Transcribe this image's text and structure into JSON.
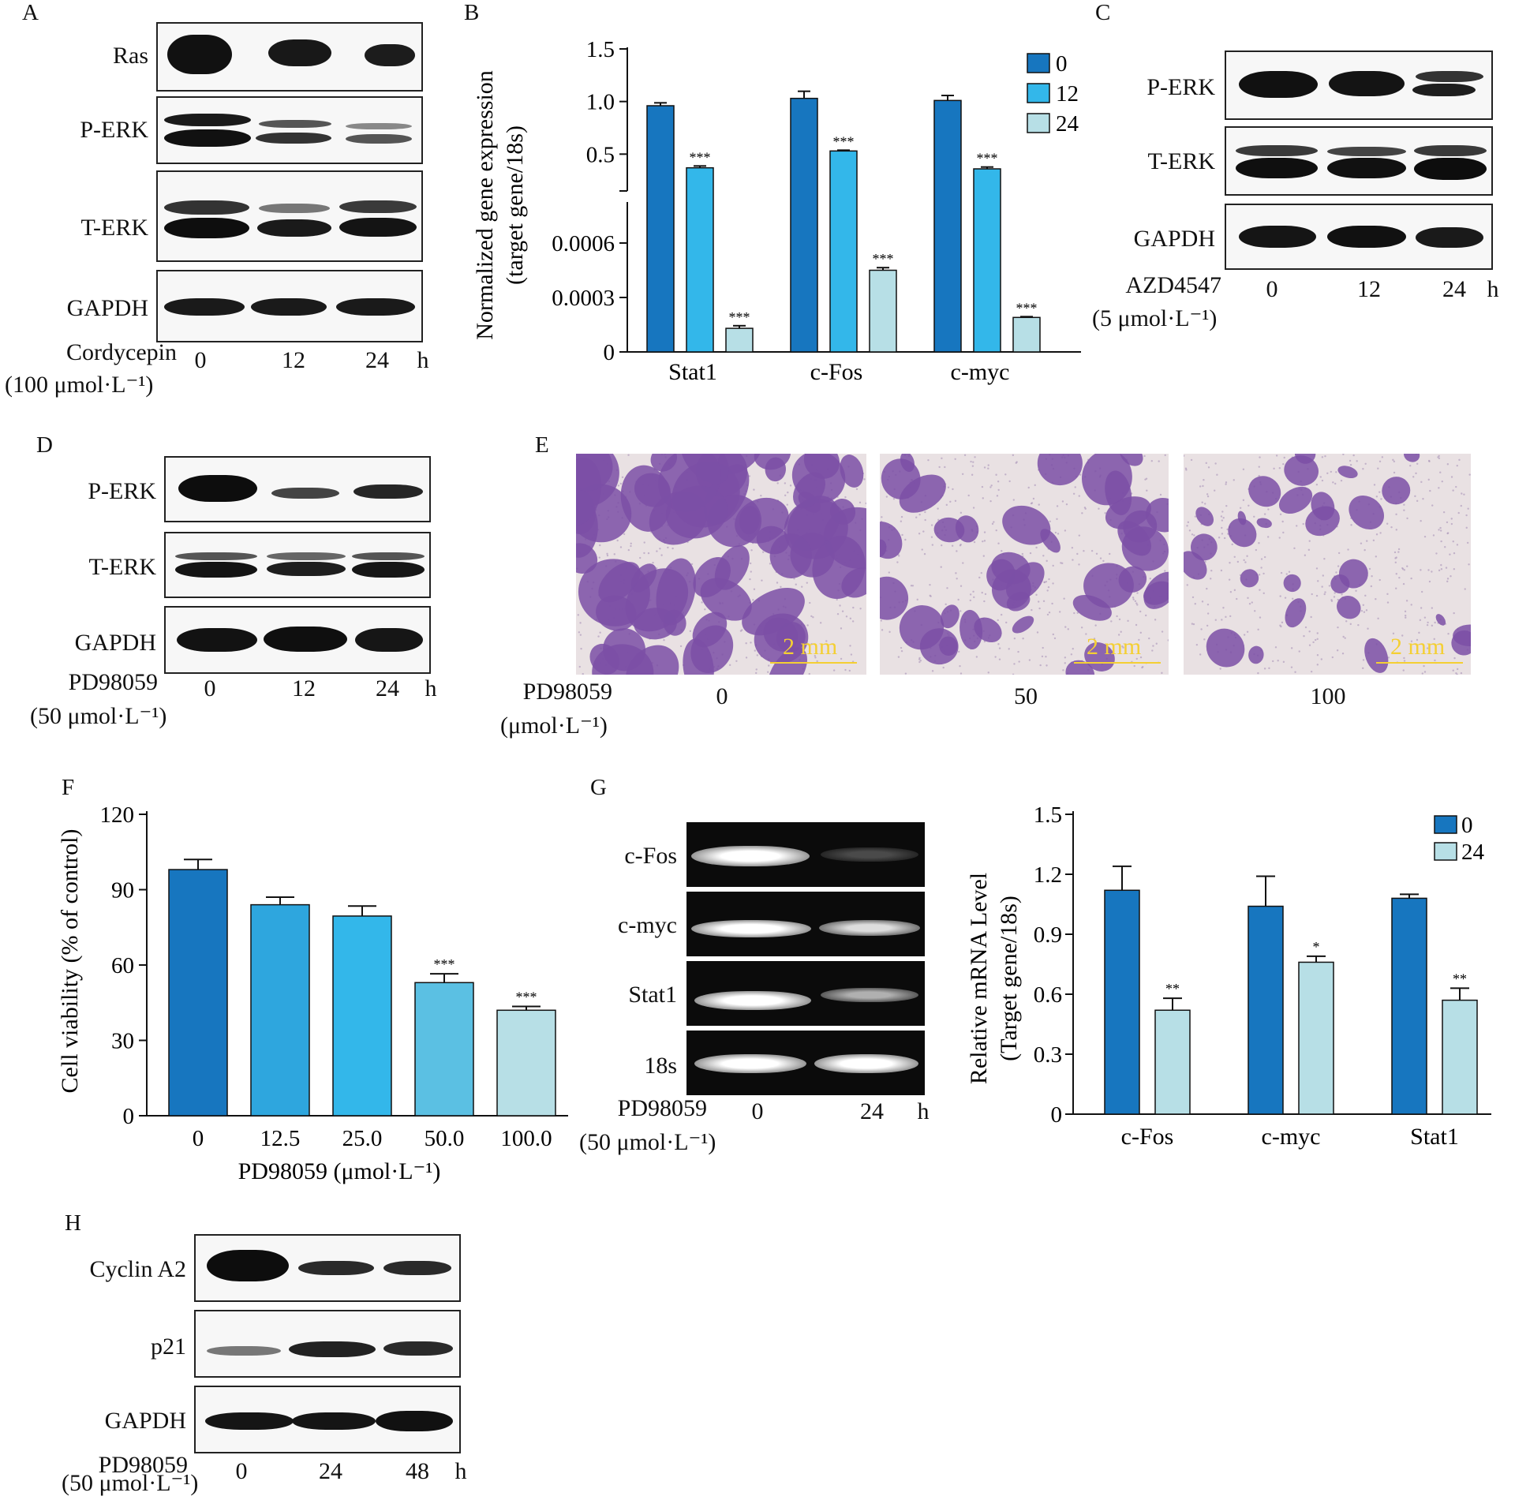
{
  "panel_letters": {
    "A": "A",
    "B": "B",
    "C": "C",
    "D": "D",
    "E": "E",
    "F": "F",
    "G": "G",
    "H": "H"
  },
  "panelA": {
    "rows": [
      "Ras",
      "P-ERK",
      "T-ERK",
      "GAPDH"
    ],
    "treatment": "Cordycepin",
    "dose": "(100 μmol·L⁻¹)",
    "times": [
      "0",
      "12",
      "24"
    ],
    "unit": "h"
  },
  "panelC": {
    "rows": [
      "P-ERK",
      "T-ERK",
      "GAPDH"
    ],
    "treatment": "AZD4547",
    "dose": "(5 μmol·L⁻¹)",
    "times": [
      "0",
      "12",
      "24"
    ],
    "unit": "h"
  },
  "panelD": {
    "rows": [
      "P-ERK",
      "T-ERK",
      "GAPDH"
    ],
    "treatment": "PD98059",
    "dose": "(50 μmol·L⁻¹)",
    "times": [
      "0",
      "12",
      "24"
    ],
    "unit": "h"
  },
  "panelE": {
    "treatment": "PD98059",
    "dose": "(μmol·L⁻¹)",
    "concentrations": [
      "0",
      "50",
      "100"
    ],
    "scale_bar": "2 mm",
    "stain_color": "#7b4fa6"
  },
  "panelG_gel": {
    "rows": [
      "c-Fos",
      "c-myc",
      "Stat1",
      "18s"
    ],
    "treatment": "PD98059",
    "dose": "(50 μmol·L⁻¹)",
    "times": [
      "0",
      "24"
    ],
    "unit": "h"
  },
  "panelH": {
    "rows": [
      "Cyclin A2",
      "p21",
      "GAPDH"
    ],
    "treatment": "PD98059",
    "dose": "(50 μmol·L⁻¹)",
    "times": [
      "0",
      "24",
      "48"
    ],
    "unit": "h"
  },
  "colors": {
    "dark": "#1776bf",
    "mid": "#33b7ea",
    "light": "#b7dfe6",
    "cvmid": "#2ea6de",
    "cv50": "#5bc0e3"
  },
  "chart_data": [
    {
      "id": "B",
      "type": "bar",
      "ylabel": "Normalized gene expression\n(target gene/18s)",
      "xlabel": "",
      "broken_axis": true,
      "ylim_lower": [
        0,
        0.0008
      ],
      "ylim_upper": [
        0,
        1.5
      ],
      "yticks": [
        "1.5",
        "1.0",
        "0.5",
        "0.0006",
        "0.0003",
        "0"
      ],
      "categories": [
        "Stat1",
        "c-Fos",
        "c-myc"
      ],
      "series": [
        {
          "name": "0",
          "values": [
            0.96,
            1.03,
            1.01
          ],
          "errors": [
            0.02,
            0.06,
            0.04
          ],
          "signif": [
            "",
            "",
            ""
          ]
        },
        {
          "name": "12",
          "values": [
            0.37,
            0.53,
            0.36
          ],
          "errors": [
            0.01,
            0.0,
            0.01
          ],
          "signif": [
            "***",
            "***",
            "***"
          ]
        },
        {
          "name": "24",
          "values": [
            0.00013,
            0.00045,
            0.00019
          ],
          "errors": [
            1e-05,
            1e-05,
            0.0
          ],
          "signif": [
            "***",
            "***",
            "***"
          ]
        }
      ],
      "legend": "top-right"
    },
    {
      "id": "F",
      "type": "bar",
      "ylabel": "Cell viability (% of control)",
      "xlabel": "PD98059 (μmol·L⁻¹)",
      "ylim": [
        0,
        120
      ],
      "yticks": [
        0,
        30,
        60,
        90,
        120
      ],
      "categories": [
        "0",
        "12.5",
        "25.0",
        "50.0",
        "100.0"
      ],
      "values": [
        98,
        84,
        79.5,
        53,
        42
      ],
      "errors": [
        4,
        3,
        4,
        3.5,
        1.5
      ],
      "signif": [
        "",
        "",
        "",
        "***",
        "***"
      ]
    },
    {
      "id": "G",
      "type": "bar",
      "ylabel": "Relative mRNA Level\n(Target gene/18s)",
      "xlabel": "",
      "ylim": [
        0,
        1.5
      ],
      "yticks": [
        "0",
        "0.3",
        "0.6",
        "0.9",
        "1.2",
        "1.5"
      ],
      "categories": [
        "c-Fos",
        "c-myc",
        "Stat1"
      ],
      "series": [
        {
          "name": "0",
          "values": [
            1.12,
            1.04,
            1.08
          ],
          "errors": [
            0.12,
            0.15,
            0.02
          ],
          "signif": [
            "",
            "",
            ""
          ]
        },
        {
          "name": "24",
          "values": [
            0.52,
            0.76,
            0.57
          ],
          "errors": [
            0.06,
            0.03,
            0.06
          ],
          "signif": [
            "**",
            "*",
            "**"
          ]
        }
      ],
      "legend": "top-right"
    }
  ]
}
